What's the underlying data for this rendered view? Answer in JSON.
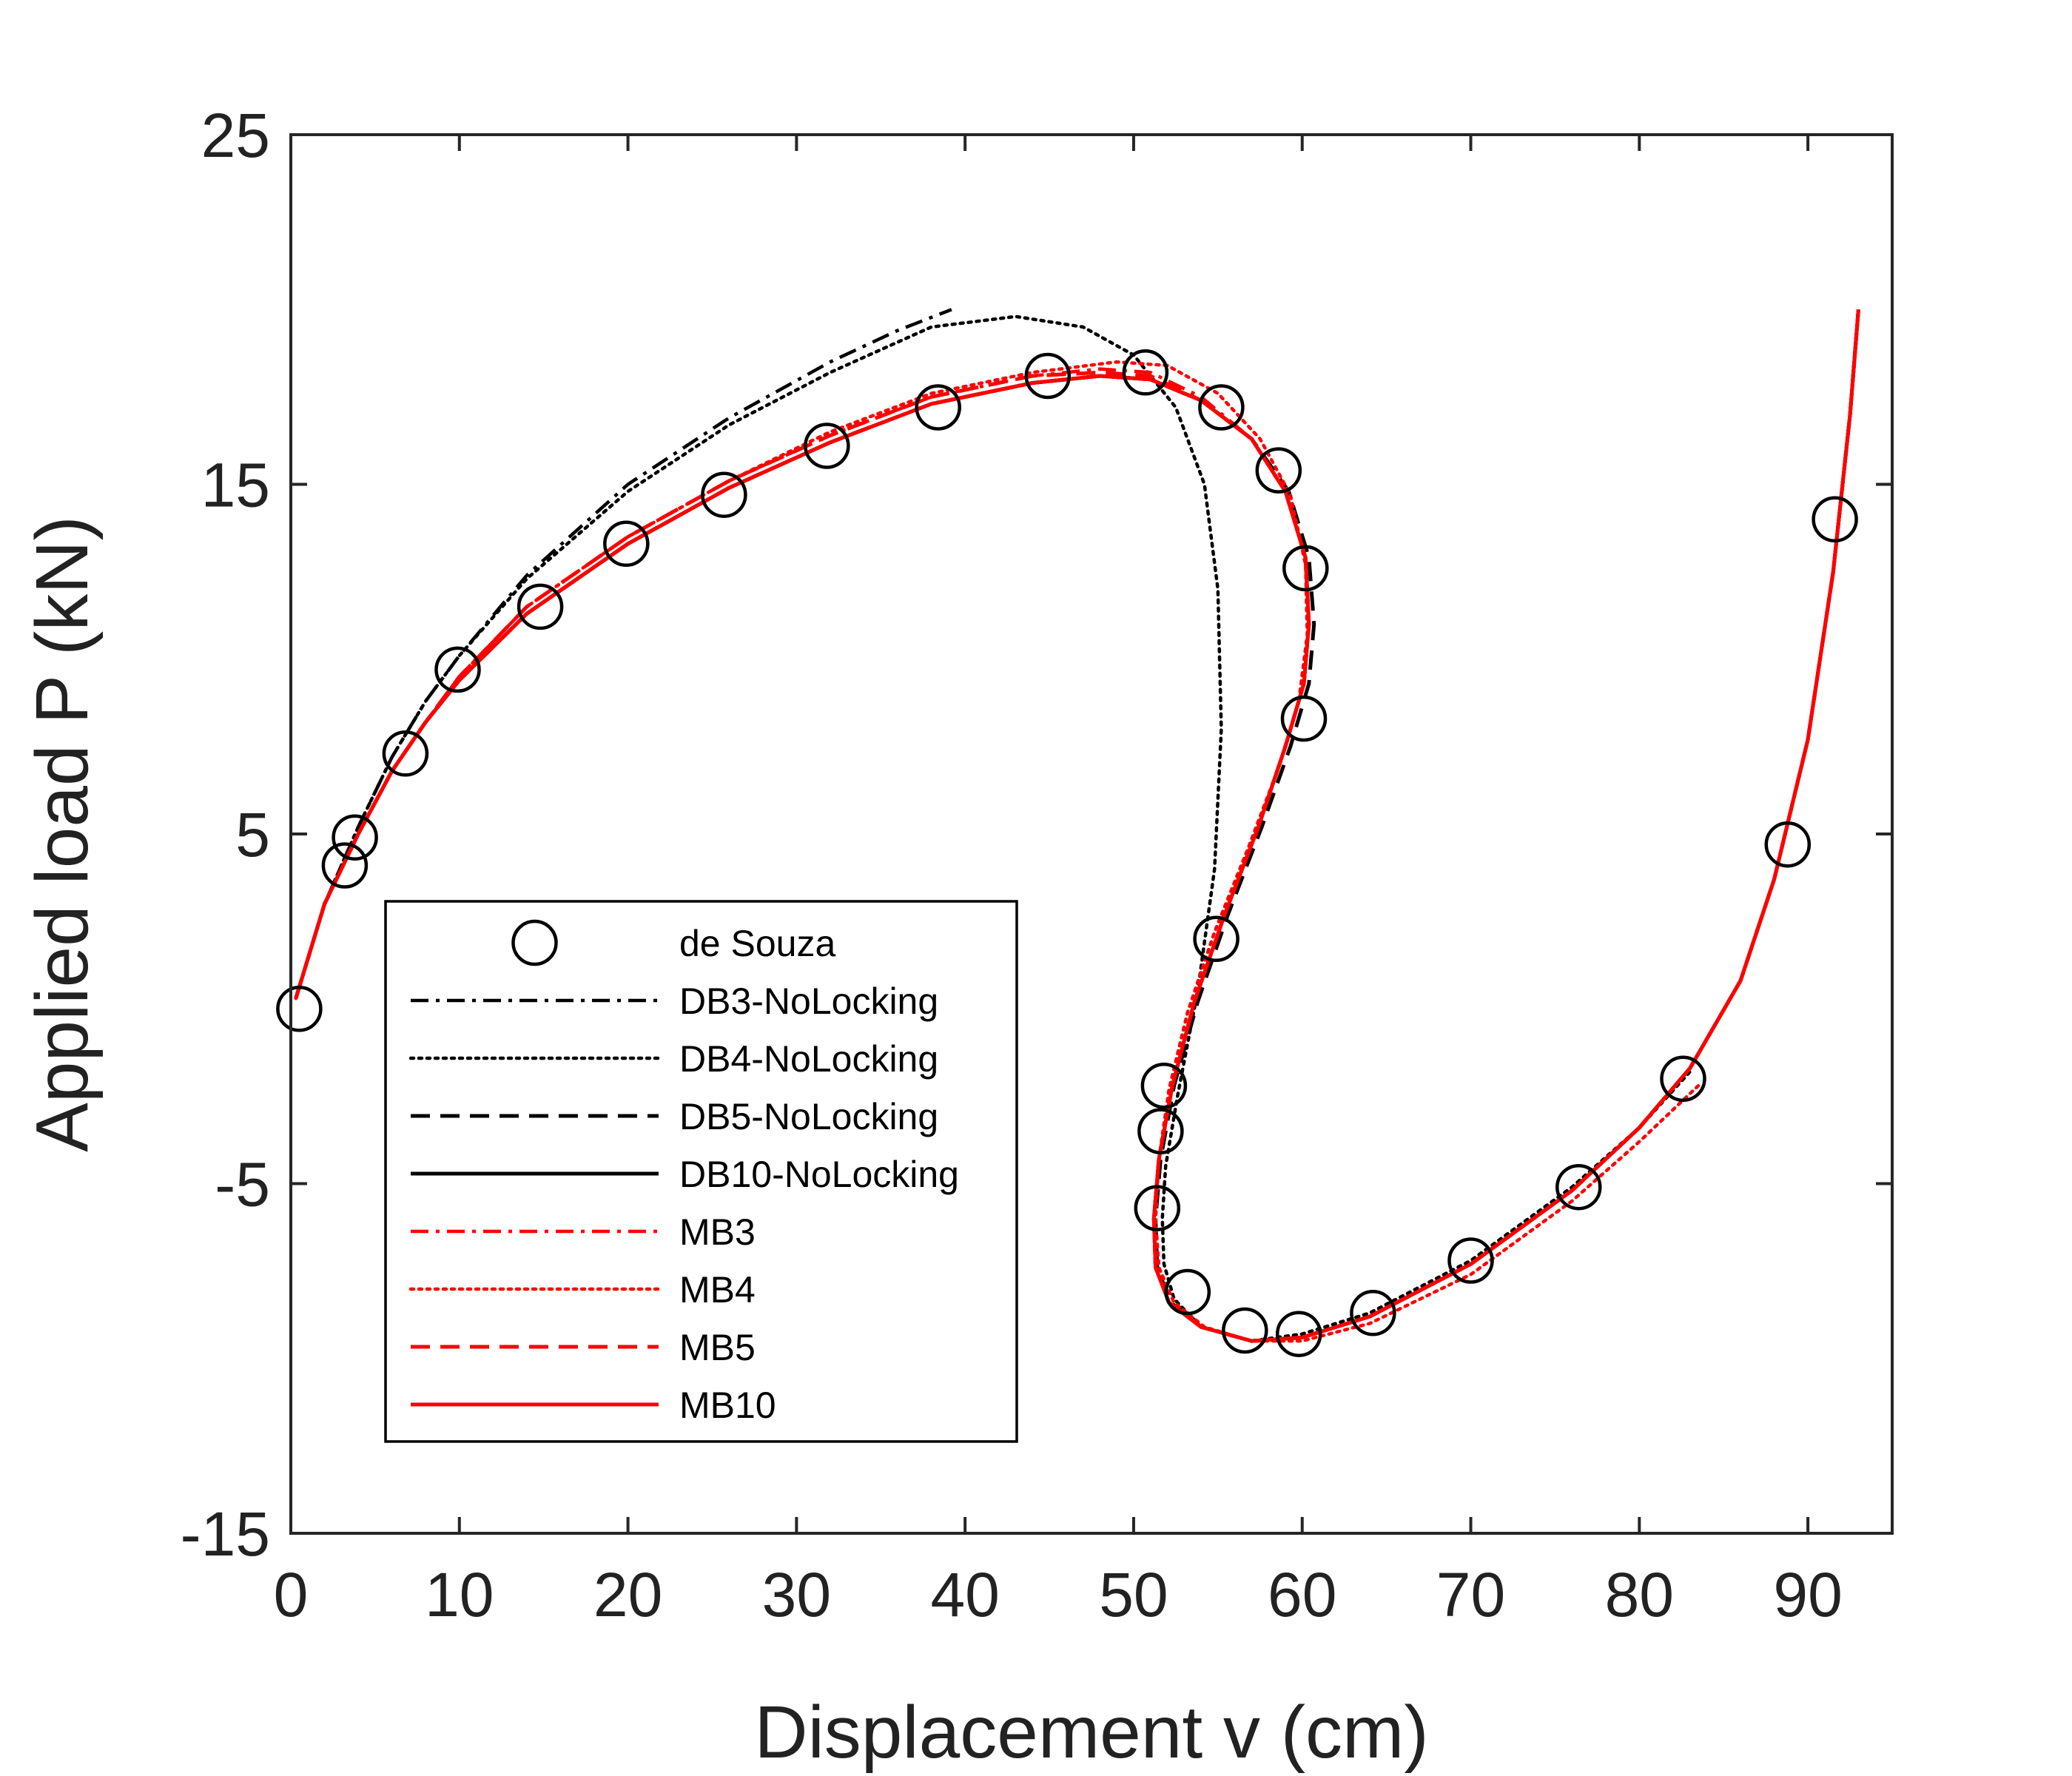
{
  "chart_data": {
    "type": "line",
    "xlabel": "Displacement v (cm)",
    "ylabel": "Applied load P (kN)",
    "xlim": [
      0,
      95
    ],
    "ylim": [
      -15,
      25
    ],
    "xticks": [
      0,
      10,
      20,
      30,
      40,
      50,
      60,
      70,
      80,
      90
    ],
    "yticks": [
      -15,
      -5,
      5,
      15,
      25
    ],
    "grid": false,
    "legend_position": "lower-left",
    "series": [
      {
        "name": "de Souza",
        "color": "#000000",
        "style": "marker-circle",
        "x": [
          0.5,
          3.2,
          3.8,
          6.8,
          9.9,
          14.8,
          19.9,
          25.7,
          31.8,
          38.4,
          44.9,
          50.7,
          55.2,
          58.6,
          60.2,
          60.1,
          54.9,
          51.8,
          51.6,
          51.4,
          53.2,
          56.6,
          59.8,
          64.2,
          70.0,
          76.4,
          82.6,
          88.8,
          91.6
        ],
        "y": [
          0.0,
          4.1,
          4.9,
          7.3,
          9.7,
          11.5,
          13.3,
          14.7,
          16.1,
          17.2,
          18.1,
          18.2,
          17.2,
          15.4,
          12.6,
          8.3,
          2.0,
          -2.2,
          -3.5,
          -5.7,
          -8.1,
          -9.2,
          -9.3,
          -8.7,
          -7.2,
          -5.1,
          -2.0,
          4.7,
          14.0
        ]
      },
      {
        "name": "DB3-NoLocking",
        "color": "#000000",
        "style": "dashdot",
        "x": [
          0.3,
          2,
          4,
          6,
          8,
          10,
          14,
          20,
          26,
          32,
          36,
          39.2
        ],
        "y": [
          0.3,
          3.0,
          5.2,
          7.2,
          8.8,
          10.1,
          12.4,
          15.0,
          16.9,
          18.5,
          19.4,
          20.0
        ]
      },
      {
        "name": "DB4-NoLocking",
        "color": "#000000",
        "style": "dotted",
        "x": [
          0.3,
          2,
          4,
          6,
          8,
          10,
          14,
          20,
          26,
          32,
          38,
          43,
          47,
          50,
          52.5,
          54.2,
          55.0,
          55.2,
          54.8,
          53.8,
          52.6,
          51.9,
          51.7,
          51.8,
          52.4,
          54,
          57,
          60,
          64,
          70,
          76,
          80,
          83
        ],
        "y": [
          0.3,
          3.0,
          5.2,
          7.2,
          8.8,
          10.1,
          12.3,
          14.8,
          16.7,
          18.2,
          19.5,
          19.8,
          19.5,
          18.7,
          17.2,
          15.0,
          12.0,
          8.0,
          4.0,
          0.5,
          -2.5,
          -4.5,
          -6.0,
          -7.3,
          -8.3,
          -9.1,
          -9.5,
          -9.3,
          -8.7,
          -7.2,
          -5.1,
          -3.4,
          -1.8
        ]
      },
      {
        "name": "DB5-NoLocking",
        "color": "#000000",
        "style": "dashed",
        "x": [
          0.3,
          2,
          4,
          6,
          8,
          10,
          14,
          20,
          26,
          32,
          38,
          44,
          48,
          51,
          54,
          57,
          59.2,
          60.4,
          60.7,
          60.4,
          59.3,
          57.6,
          55.6,
          53.8,
          52.4,
          51.6,
          51.3,
          51.4,
          52.2,
          54,
          57,
          60,
          64,
          70,
          76,
          80,
          83,
          86,
          88,
          90,
          91.5,
          92.5,
          93.0
        ],
        "y": [
          0.3,
          3.0,
          5.0,
          6.8,
          8.2,
          9.4,
          11.3,
          13.3,
          14.9,
          16.2,
          17.3,
          17.9,
          18.1,
          18.0,
          17.4,
          16.3,
          14.8,
          12.9,
          11.0,
          9.3,
          7.5,
          5.2,
          2.7,
          0.2,
          -2.2,
          -4.3,
          -6.0,
          -7.4,
          -8.4,
          -9.1,
          -9.5,
          -9.4,
          -8.8,
          -7.3,
          -5.2,
          -3.4,
          -1.7,
          0.8,
          3.7,
          7.7,
          12.5,
          17.0,
          20.0
        ]
      },
      {
        "name": "DB10-NoLocking",
        "color": "#000000",
        "style": "solid",
        "x": [
          0.3,
          2,
          4,
          6,
          8,
          10,
          14,
          20,
          26,
          32,
          38,
          44,
          48,
          51,
          54,
          57,
          59.0,
          60.2,
          60.4,
          60.1,
          59.0,
          57.4,
          55.4,
          53.6,
          52.3,
          51.5,
          51.2,
          51.3,
          52.1,
          54,
          57,
          60,
          64,
          70,
          76,
          80,
          83,
          86,
          88,
          90,
          91.5,
          92.5,
          93.0
        ],
        "y": [
          0.3,
          3.0,
          5.0,
          6.8,
          8.2,
          9.4,
          11.3,
          13.3,
          14.9,
          16.2,
          17.3,
          17.9,
          18.1,
          18.0,
          17.4,
          16.3,
          14.8,
          12.9,
          11.0,
          9.3,
          7.5,
          5.2,
          2.7,
          0.2,
          -2.2,
          -4.3,
          -6.0,
          -7.4,
          -8.4,
          -9.1,
          -9.5,
          -9.4,
          -8.8,
          -7.3,
          -5.2,
          -3.4,
          -1.7,
          0.8,
          3.7,
          7.7,
          12.5,
          17.0,
          20.0
        ]
      },
      {
        "name": "MB3",
        "color": "#ff0000",
        "style": "dashdot",
        "x": [
          0.3,
          2,
          4,
          6,
          8,
          10,
          14,
          20,
          26,
          32,
          38,
          44,
          48,
          51,
          54,
          57,
          59.0,
          60.2,
          60.4,
          60.1,
          59.0,
          57.4,
          55.4,
          53.6,
          52.3,
          51.5,
          51.2,
          51.3,
          52.1,
          54,
          57,
          60,
          64,
          70,
          76,
          80,
          83,
          86,
          88,
          90,
          91.5,
          92.5,
          93.0
        ],
        "y": [
          0.3,
          3.0,
          5.0,
          6.8,
          8.2,
          9.5,
          11.5,
          13.5,
          15.1,
          16.4,
          17.5,
          18.1,
          18.3,
          18.2,
          17.5,
          16.3,
          14.8,
          12.9,
          11.0,
          9.3,
          7.5,
          5.2,
          2.7,
          0.2,
          -2.2,
          -4.3,
          -6.0,
          -7.4,
          -8.4,
          -9.1,
          -9.5,
          -9.4,
          -8.8,
          -7.3,
          -5.2,
          -3.4,
          -1.7,
          0.8,
          3.7,
          7.7,
          12.5,
          17.0,
          20.0
        ]
      },
      {
        "name": "MB4",
        "color": "#ff0000",
        "style": "dotted",
        "x": [
          0.3,
          2,
          4,
          6,
          8,
          10,
          14,
          20,
          26,
          32,
          38,
          44,
          49,
          52,
          55,
          57.5,
          59.3,
          60.2,
          60.3,
          59.8,
          58.6,
          56.8,
          54.8,
          53.2,
          52.1,
          51.5,
          51.3,
          51.5,
          52.4,
          54.2,
          57,
          60,
          64,
          70,
          76,
          80,
          83.5
        ],
        "y": [
          0.3,
          3.0,
          5.0,
          6.8,
          8.2,
          9.5,
          11.5,
          13.5,
          15.1,
          16.5,
          17.6,
          18.2,
          18.5,
          18.4,
          17.6,
          16.3,
          14.7,
          12.7,
          10.7,
          8.8,
          6.9,
          4.6,
          2.2,
          -0.1,
          -2.3,
          -4.3,
          -6.0,
          -7.4,
          -8.4,
          -9.1,
          -9.5,
          -9.5,
          -9.0,
          -7.6,
          -5.5,
          -3.8,
          -2.2
        ]
      },
      {
        "name": "MB5",
        "color": "#ff0000",
        "style": "dashed",
        "x": [
          0.3,
          2,
          4,
          6,
          8,
          10,
          14,
          20,
          26,
          32,
          38,
          44,
          48,
          51,
          54,
          57,
          59.0,
          60.2,
          60.4,
          60.1,
          59.0,
          57.4,
          55.4,
          53.6,
          52.3,
          51.5,
          51.2,
          51.3,
          52.1,
          54,
          57,
          60,
          64,
          70,
          76,
          80,
          83,
          86,
          88,
          90,
          91.5,
          92.5,
          93.0
        ],
        "y": [
          0.3,
          3.0,
          5.0,
          6.8,
          8.2,
          9.5,
          11.5,
          13.5,
          15.1,
          16.4,
          17.5,
          18.1,
          18.2,
          18.1,
          17.4,
          16.3,
          14.8,
          12.9,
          11.0,
          9.3,
          7.5,
          5.2,
          2.7,
          0.2,
          -2.2,
          -4.3,
          -6.0,
          -7.4,
          -8.4,
          -9.1,
          -9.5,
          -9.4,
          -8.8,
          -7.3,
          -5.2,
          -3.4,
          -1.7,
          0.8,
          3.7,
          7.7,
          12.5,
          17.0,
          20.0
        ]
      },
      {
        "name": "MB10",
        "color": "#ff0000",
        "style": "solid",
        "x": [
          0.3,
          2,
          4,
          6,
          8,
          10,
          14,
          20,
          26,
          32,
          38,
          44,
          48,
          51,
          54,
          57,
          59.0,
          60.2,
          60.4,
          60.1,
          59.0,
          57.4,
          55.4,
          53.6,
          52.3,
          51.5,
          51.2,
          51.3,
          52.1,
          54,
          57,
          60,
          64,
          70,
          76,
          80,
          83,
          86,
          88,
          90,
          91.5,
          92.5,
          93.0
        ],
        "y": [
          0.3,
          3.0,
          5.0,
          6.8,
          8.2,
          9.4,
          11.3,
          13.3,
          14.9,
          16.2,
          17.3,
          17.9,
          18.1,
          18.0,
          17.4,
          16.3,
          14.8,
          12.9,
          11.0,
          9.3,
          7.5,
          5.2,
          2.7,
          0.2,
          -2.2,
          -4.3,
          -6.0,
          -7.4,
          -8.4,
          -9.1,
          -9.5,
          -9.4,
          -8.8,
          -7.3,
          -5.2,
          -3.4,
          -1.7,
          0.8,
          3.7,
          7.7,
          12.5,
          17.0,
          20.0
        ]
      }
    ]
  }
}
